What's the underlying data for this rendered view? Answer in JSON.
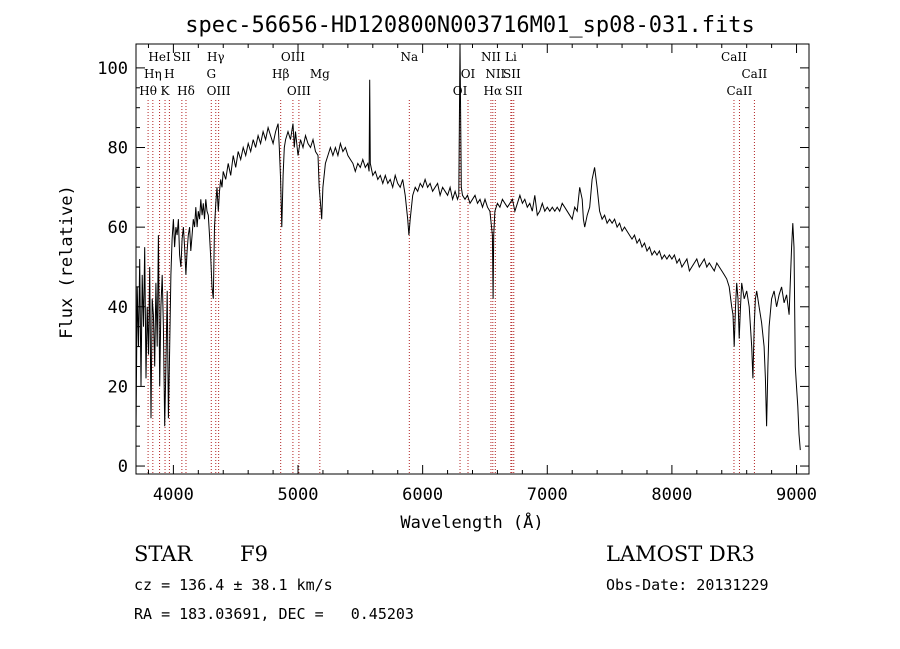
{
  "chart_data": {
    "type": "line",
    "title": "spec-56656-HD120800N003716M01_sp08-031.fits",
    "xlabel": "Wavelength (Å)",
    "ylabel": "Flux (relative)",
    "xlim": [
      3700,
      9100
    ],
    "ylim": [
      -2,
      106
    ],
    "xticks": [
      4000,
      5000,
      6000,
      7000,
      8000,
      9000
    ],
    "yticks": [
      0,
      20,
      40,
      60,
      80,
      100
    ],
    "grid": false,
    "line_color": "#000000",
    "marker_color": "#b22222",
    "spectrum": [
      [
        3700,
        8
      ],
      [
        3710,
        45
      ],
      [
        3720,
        30
      ],
      [
        3730,
        52
      ],
      [
        3740,
        20
      ],
      [
        3750,
        48
      ],
      [
        3760,
        35
      ],
      [
        3770,
        55
      ],
      [
        3780,
        22
      ],
      [
        3790,
        40
      ],
      [
        3800,
        28
      ],
      [
        3810,
        50
      ],
      [
        3820,
        12
      ],
      [
        3830,
        42
      ],
      [
        3840,
        38
      ],
      [
        3850,
        25
      ],
      [
        3860,
        46
      ],
      [
        3870,
        30
      ],
      [
        3880,
        58
      ],
      [
        3890,
        20
      ],
      [
        3900,
        40
      ],
      [
        3910,
        48
      ],
      [
        3920,
        35
      ],
      [
        3930,
        10
      ],
      [
        3940,
        25
      ],
      [
        3950,
        44
      ],
      [
        3960,
        12
      ],
      [
        3970,
        30
      ],
      [
        3980,
        48
      ],
      [
        3990,
        57
      ],
      [
        4000,
        62
      ],
      [
        4010,
        55
      ],
      [
        4020,
        60
      ],
      [
        4030,
        58
      ],
      [
        4040,
        62
      ],
      [
        4050,
        53
      ],
      [
        4060,
        50
      ],
      [
        4070,
        57
      ],
      [
        4080,
        60
      ],
      [
        4090,
        55
      ],
      [
        4100,
        48
      ],
      [
        4110,
        54
      ],
      [
        4120,
        58
      ],
      [
        4130,
        60
      ],
      [
        4140,
        54
      ],
      [
        4150,
        58
      ],
      [
        4160,
        62
      ],
      [
        4170,
        60
      ],
      [
        4180,
        65
      ],
      [
        4190,
        60
      ],
      [
        4200,
        64
      ],
      [
        4210,
        62
      ],
      [
        4220,
        67
      ],
      [
        4230,
        63
      ],
      [
        4240,
        66
      ],
      [
        4250,
        62
      ],
      [
        4260,
        67
      ],
      [
        4270,
        64
      ],
      [
        4280,
        63
      ],
      [
        4290,
        58
      ],
      [
        4300,
        52
      ],
      [
        4310,
        45
      ],
      [
        4320,
        42
      ],
      [
        4330,
        60
      ],
      [
        4340,
        66
      ],
      [
        4350,
        70
      ],
      [
        4360,
        64
      ],
      [
        4370,
        69
      ],
      [
        4380,
        72
      ],
      [
        4390,
        70
      ],
      [
        4400,
        74
      ],
      [
        4420,
        72
      ],
      [
        4440,
        76
      ],
      [
        4460,
        73
      ],
      [
        4480,
        78
      ],
      [
        4500,
        75
      ],
      [
        4520,
        79
      ],
      [
        4540,
        77
      ],
      [
        4560,
        80
      ],
      [
        4580,
        78
      ],
      [
        4600,
        81
      ],
      [
        4620,
        79
      ],
      [
        4640,
        82
      ],
      [
        4660,
        80
      ],
      [
        4680,
        83
      ],
      [
        4700,
        81
      ],
      [
        4720,
        84
      ],
      [
        4740,
        82
      ],
      [
        4760,
        85
      ],
      [
        4780,
        83
      ],
      [
        4800,
        81
      ],
      [
        4820,
        84
      ],
      [
        4840,
        86
      ],
      [
        4850,
        80
      ],
      [
        4860,
        72
      ],
      [
        4870,
        60
      ],
      [
        4880,
        73
      ],
      [
        4890,
        80
      ],
      [
        4900,
        82
      ],
      [
        4920,
        84
      ],
      [
        4940,
        82
      ],
      [
        4960,
        86
      ],
      [
        4970,
        80
      ],
      [
        4980,
        84
      ],
      [
        5000,
        78
      ],
      [
        5020,
        82
      ],
      [
        5040,
        80
      ],
      [
        5060,
        83
      ],
      [
        5080,
        81
      ],
      [
        5100,
        80
      ],
      [
        5120,
        82
      ],
      [
        5140,
        79
      ],
      [
        5160,
        78
      ],
      [
        5170,
        70
      ],
      [
        5180,
        66
      ],
      [
        5190,
        62
      ],
      [
        5200,
        70
      ],
      [
        5220,
        76
      ],
      [
        5240,
        78
      ],
      [
        5260,
        80
      ],
      [
        5280,
        78
      ],
      [
        5300,
        80
      ],
      [
        5320,
        78
      ],
      [
        5340,
        81
      ],
      [
        5360,
        79
      ],
      [
        5380,
        80
      ],
      [
        5400,
        78
      ],
      [
        5420,
        77
      ],
      [
        5440,
        76
      ],
      [
        5460,
        74
      ],
      [
        5480,
        76
      ],
      [
        5500,
        75
      ],
      [
        5520,
        77
      ],
      [
        5540,
        75
      ],
      [
        5560,
        76
      ],
      [
        5570,
        74
      ],
      [
        5575,
        97
      ],
      [
        5580,
        76
      ],
      [
        5600,
        73
      ],
      [
        5620,
        74
      ],
      [
        5640,
        72
      ],
      [
        5660,
        73
      ],
      [
        5680,
        71
      ],
      [
        5700,
        73
      ],
      [
        5720,
        71
      ],
      [
        5740,
        72
      ],
      [
        5760,
        70
      ],
      [
        5780,
        73
      ],
      [
        5800,
        71
      ],
      [
        5820,
        70
      ],
      [
        5840,
        72
      ],
      [
        5860,
        68
      ],
      [
        5880,
        62
      ],
      [
        5890,
        58
      ],
      [
        5900,
        62
      ],
      [
        5920,
        68
      ],
      [
        5940,
        70
      ],
      [
        5960,
        69
      ],
      [
        5980,
        71
      ],
      [
        6000,
        70
      ],
      [
        6020,
        72
      ],
      [
        6040,
        70
      ],
      [
        6060,
        71
      ],
      [
        6080,
        69
      ],
      [
        6100,
        70
      ],
      [
        6120,
        71
      ],
      [
        6140,
        68
      ],
      [
        6160,
        70
      ],
      [
        6180,
        69
      ],
      [
        6200,
        68
      ],
      [
        6220,
        70
      ],
      [
        6240,
        67
      ],
      [
        6260,
        69
      ],
      [
        6280,
        67
      ],
      [
        6290,
        68
      ],
      [
        6300,
        106
      ],
      [
        6310,
        70
      ],
      [
        6320,
        68
      ],
      [
        6340,
        67
      ],
      [
        6360,
        68
      ],
      [
        6380,
        66
      ],
      [
        6400,
        67
      ],
      [
        6420,
        68
      ],
      [
        6440,
        66
      ],
      [
        6460,
        67
      ],
      [
        6480,
        65
      ],
      [
        6500,
        67
      ],
      [
        6520,
        65
      ],
      [
        6540,
        64
      ],
      [
        6560,
        58
      ],
      [
        6565,
        42
      ],
      [
        6570,
        58
      ],
      [
        6580,
        64
      ],
      [
        6600,
        66
      ],
      [
        6620,
        65
      ],
      [
        6640,
        67
      ],
      [
        6660,
        66
      ],
      [
        6680,
        65
      ],
      [
        6700,
        66
      ],
      [
        6720,
        67
      ],
      [
        6740,
        64
      ],
      [
        6760,
        66
      ],
      [
        6780,
        68
      ],
      [
        6800,
        66
      ],
      [
        6820,
        67
      ],
      [
        6840,
        65
      ],
      [
        6860,
        66
      ],
      [
        6880,
        64
      ],
      [
        6900,
        68
      ],
      [
        6920,
        63
      ],
      [
        6940,
        64
      ],
      [
        6960,
        66
      ],
      [
        6980,
        64
      ],
      [
        7000,
        65
      ],
      [
        7020,
        64
      ],
      [
        7040,
        65
      ],
      [
        7060,
        64
      ],
      [
        7080,
        65
      ],
      [
        7100,
        64
      ],
      [
        7120,
        66
      ],
      [
        7140,
        65
      ],
      [
        7160,
        64
      ],
      [
        7180,
        63
      ],
      [
        7200,
        62
      ],
      [
        7220,
        65
      ],
      [
        7240,
        64
      ],
      [
        7260,
        70
      ],
      [
        7280,
        67
      ],
      [
        7290,
        62
      ],
      [
        7300,
        60
      ],
      [
        7320,
        63
      ],
      [
        7340,
        65
      ],
      [
        7360,
        72
      ],
      [
        7380,
        75
      ],
      [
        7400,
        70
      ],
      [
        7420,
        64
      ],
      [
        7440,
        62
      ],
      [
        7460,
        63
      ],
      [
        7480,
        61
      ],
      [
        7500,
        62
      ],
      [
        7520,
        61
      ],
      [
        7540,
        62
      ],
      [
        7560,
        60
      ],
      [
        7580,
        61
      ],
      [
        7600,
        59
      ],
      [
        7620,
        60
      ],
      [
        7640,
        59
      ],
      [
        7660,
        58
      ],
      [
        7680,
        57
      ],
      [
        7700,
        58
      ],
      [
        7720,
        56
      ],
      [
        7740,
        57
      ],
      [
        7760,
        55
      ],
      [
        7780,
        56
      ],
      [
        7800,
        54
      ],
      [
        7820,
        55
      ],
      [
        7840,
        53
      ],
      [
        7860,
        54
      ],
      [
        7880,
        53
      ],
      [
        7900,
        54
      ],
      [
        7920,
        52
      ],
      [
        7940,
        53
      ],
      [
        7960,
        52
      ],
      [
        7980,
        53
      ],
      [
        8000,
        52
      ],
      [
        8020,
        53
      ],
      [
        8040,
        51
      ],
      [
        8060,
        52
      ],
      [
        8080,
        50
      ],
      [
        8100,
        51
      ],
      [
        8120,
        52
      ],
      [
        8140,
        49
      ],
      [
        8160,
        50
      ],
      [
        8180,
        51
      ],
      [
        8200,
        52
      ],
      [
        8220,
        50
      ],
      [
        8240,
        51
      ],
      [
        8260,
        52
      ],
      [
        8280,
        50
      ],
      [
        8300,
        51
      ],
      [
        8320,
        50
      ],
      [
        8340,
        49
      ],
      [
        8360,
        51
      ],
      [
        8380,
        50
      ],
      [
        8400,
        49
      ],
      [
        8420,
        48
      ],
      [
        8440,
        47
      ],
      [
        8460,
        45
      ],
      [
        8480,
        40
      ],
      [
        8490,
        38
      ],
      [
        8500,
        30
      ],
      [
        8510,
        40
      ],
      [
        8520,
        46
      ],
      [
        8530,
        42
      ],
      [
        8540,
        32
      ],
      [
        8550,
        40
      ],
      [
        8560,
        46
      ],
      [
        8580,
        42
      ],
      [
        8600,
        44
      ],
      [
        8620,
        40
      ],
      [
        8640,
        30
      ],
      [
        8650,
        22
      ],
      [
        8660,
        35
      ],
      [
        8670,
        42
      ],
      [
        8680,
        44
      ],
      [
        8700,
        40
      ],
      [
        8720,
        36
      ],
      [
        8740,
        30
      ],
      [
        8750,
        22
      ],
      [
        8760,
        10
      ],
      [
        8770,
        25
      ],
      [
        8780,
        35
      ],
      [
        8800,
        42
      ],
      [
        8820,
        44
      ],
      [
        8840,
        40
      ],
      [
        8860,
        43
      ],
      [
        8880,
        45
      ],
      [
        8900,
        41
      ],
      [
        8920,
        43
      ],
      [
        8940,
        38
      ],
      [
        8960,
        55
      ],
      [
        8970,
        61
      ],
      [
        8980,
        55
      ],
      [
        8990,
        25
      ],
      [
        9000,
        20
      ],
      [
        9010,
        15
      ],
      [
        9020,
        8
      ],
      [
        9030,
        4
      ]
    ],
    "lines": [
      {
        "label": "Hθ",
        "wavelength": 3797,
        "row": 3
      },
      {
        "label": "Hη",
        "wavelength": 3835,
        "row": 2
      },
      {
        "label": "HeI",
        "wavelength": 3889,
        "row": 1
      },
      {
        "label": "K",
        "wavelength": 3933,
        "row": 3
      },
      {
        "label": "H",
        "wavelength": 3968,
        "row": 2
      },
      {
        "label": "SII",
        "wavelength": 4068,
        "row": 1
      },
      {
        "label": "Hδ",
        "wavelength": 4101,
        "row": 3
      },
      {
        "label": "Hγ",
        "wavelength": 4340,
        "row": 1
      },
      {
        "label": "G",
        "wavelength": 4304,
        "row": 2
      },
      {
        "label": "OIII",
        "wavelength": 4363,
        "row": 3
      },
      {
        "label": "Hβ",
        "wavelength": 4861,
        "row": 2
      },
      {
        "label": "OIII",
        "wavelength": 4959,
        "row": 1
      },
      {
        "label": "OIII",
        "wavelength": 5007,
        "row": 3
      },
      {
        "label": "Mg",
        "wavelength": 5175,
        "row": 2
      },
      {
        "label": "Na",
        "wavelength": 5893,
        "row": 1
      },
      {
        "label": "OI",
        "wavelength": 6300,
        "row": 3
      },
      {
        "label": "OI",
        "wavelength": 6364,
        "row": 2
      },
      {
        "label": "NII",
        "wavelength": 6548,
        "row": 1
      },
      {
        "label": "Hα",
        "wavelength": 6563,
        "row": 3
      },
      {
        "label": "NII",
        "wavelength": 6583,
        "row": 2
      },
      {
        "label": "Li",
        "wavelength": 6708,
        "row": 1
      },
      {
        "label": "SII",
        "wavelength": 6716,
        "row": 2
      },
      {
        "label": "SII",
        "wavelength": 6731,
        "row": 3
      },
      {
        "label": "CaII",
        "wavelength": 8498,
        "row": 1
      },
      {
        "label": "CaII",
        "wavelength": 8542,
        "row": 3
      },
      {
        "label": "CaII",
        "wavelength": 8662,
        "row": 2
      }
    ]
  },
  "info": {
    "object_class": "STAR",
    "subclass": "F9",
    "survey": "LAMOST DR3",
    "redshift": "cz = 136.4 ± 38.1 km/s",
    "obs_date": "Obs-Date: 20131229",
    "coords": "RA = 183.03691, DEC =   0.45203"
  }
}
